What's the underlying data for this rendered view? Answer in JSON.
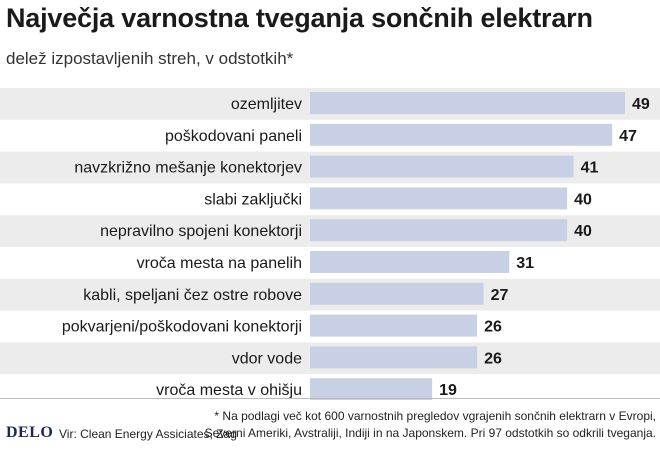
{
  "header": {
    "title": "Največja varnostna tveganja sončnih elektrarn",
    "subtitle": "delež izpostavljenih streh, v odstotkih*"
  },
  "chart_data": {
    "type": "bar",
    "orientation": "horizontal",
    "title": "Največja varnostna tveganja sončnih elektrarn",
    "subtitle": "delež izpostavljenih streh, v odstotkih*",
    "xlabel": "",
    "ylabel": "",
    "xlim": [
      0,
      49
    ],
    "grid": false,
    "legend": "none",
    "categories": [
      "ozemljitev",
      "poškodovani paneli",
      "navzkrižno mešanje konektorjev",
      "slabi zaključki",
      "nepravilno spojeni konektorji",
      "vroča mesta na panelih",
      "kabli, speljani čez ostre robove",
      "pokvarjeni/poškodovani konektorji",
      "vdor vode",
      "vroča mesta v ohišju"
    ],
    "values": [
      49,
      47,
      41,
      40,
      40,
      31,
      27,
      26,
      26,
      19
    ]
  },
  "footer": {
    "logo": "DELO",
    "source": "Vir: Clean Energy Assiciates, Zag",
    "footnote": "* Na podlagi več kot 600 varnostnih pregledov vgrajenih sončnih elektrarn v Evropi, Severni Ameriki, Avstraliji, Indiji in na Japonskem. Pri 97 odstotkih so odkrili tveganja."
  },
  "colors": {
    "bar": "#c8d0e6",
    "stripe": "#ececec",
    "text": "#1a1a1a",
    "logo": "#1a2a55"
  }
}
